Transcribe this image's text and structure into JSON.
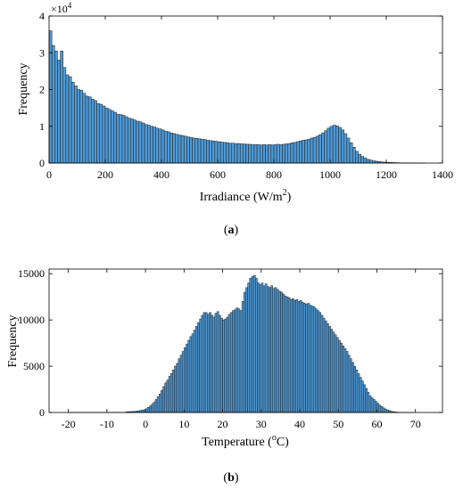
{
  "figures": [
    {
      "caption_open": "(",
      "caption_letter": "a",
      "caption_close": ")",
      "chart_data": {
        "type": "bar",
        "title": "",
        "xlabel": "Irradiance (W/m",
        "xlabel_sup": "2",
        "xlabel_end": ")",
        "ylabel": "Frequency",
        "y_multiplier_base": "×10",
        "y_multiplier_exp": "4",
        "xlim": [
          0,
          1400
        ],
        "ylim": [
          0,
          4
        ],
        "xticks": [
          0,
          200,
          400,
          600,
          800,
          1000,
          1200,
          1400
        ],
        "yticks": [
          0,
          1,
          2,
          3,
          4
        ],
        "bin_start": 0,
        "bin_width": 10,
        "bar_color": "#4f9ad6",
        "edge_color": "#1a1a1a",
        "values": [
          3.6,
          3.2,
          3.05,
          2.8,
          3.05,
          2.6,
          2.4,
          2.35,
          2.2,
          2.1,
          2.0,
          1.98,
          1.9,
          1.82,
          1.8,
          1.74,
          1.7,
          1.62,
          1.6,
          1.55,
          1.5,
          1.46,
          1.42,
          1.38,
          1.33,
          1.32,
          1.3,
          1.26,
          1.22,
          1.2,
          1.17,
          1.14,
          1.12,
          1.09,
          1.05,
          1.03,
          1.0,
          0.98,
          0.95,
          0.93,
          0.9,
          0.87,
          0.85,
          0.82,
          0.8,
          0.78,
          0.76,
          0.75,
          0.73,
          0.71,
          0.7,
          0.68,
          0.67,
          0.66,
          0.65,
          0.64,
          0.62,
          0.61,
          0.6,
          0.59,
          0.58,
          0.57,
          0.56,
          0.55,
          0.54,
          0.54,
          0.53,
          0.53,
          0.52,
          0.52,
          0.51,
          0.51,
          0.5,
          0.5,
          0.5,
          0.49,
          0.5,
          0.49,
          0.5,
          0.49,
          0.5,
          0.51,
          0.5,
          0.51,
          0.52,
          0.53,
          0.55,
          0.56,
          0.58,
          0.6,
          0.62,
          0.63,
          0.65,
          0.68,
          0.7,
          0.73,
          0.77,
          0.82,
          0.88,
          0.95,
          1.0,
          1.03,
          1.01,
          0.97,
          0.9,
          0.8,
          0.68,
          0.55,
          0.43,
          0.32,
          0.24,
          0.18,
          0.14,
          0.1,
          0.08,
          0.06,
          0.05,
          0.04,
          0.03,
          0.025,
          0.02,
          0.016,
          0.013,
          0.01,
          0.008,
          0.006,
          0.005,
          0.004,
          0.003,
          0.002,
          0.002,
          0.001,
          0.001,
          0.001
        ]
      }
    },
    {
      "caption_open": "(",
      "caption_letter": "b",
      "caption_close": ")",
      "chart_data": {
        "type": "bar",
        "title": "",
        "xlabel": "Temperature (",
        "xlabel_sup": "o",
        "xlabel_end": "C)",
        "ylabel": "Frequency",
        "xlim": [
          -25,
          77
        ],
        "ylim": [
          0,
          15500
        ],
        "xticks": [
          -20,
          -10,
          0,
          10,
          20,
          30,
          40,
          50,
          60,
          70
        ],
        "yticks": [
          0,
          5000,
          10000,
          15000
        ],
        "bin_start": -25,
        "bin_width": 0.5,
        "bar_color": "#4f9ad6",
        "edge_color": "#1a1a1a",
        "values": [
          0,
          0,
          0,
          0,
          0,
          0,
          0,
          0,
          0,
          0,
          5,
          5,
          5,
          5,
          5,
          5,
          5,
          5,
          5,
          5,
          5,
          5,
          5,
          5,
          5,
          5,
          5,
          5,
          5,
          5,
          20,
          20,
          20,
          20,
          20,
          20,
          20,
          20,
          20,
          20,
          80,
          90,
          100,
          110,
          120,
          150,
          180,
          220,
          260,
          300,
          400,
          550,
          700,
          900,
          1100,
          1400,
          1700,
          2000,
          2400,
          2800,
          3200,
          3500,
          3900,
          4200,
          4600,
          5000,
          5300,
          5800,
          6200,
          6600,
          7000,
          7400,
          7800,
          8200,
          8500,
          8900,
          9300,
          9700,
          10100,
          10500,
          10800,
          10800,
          10600,
          10800,
          10500,
          10300,
          10700,
          10900,
          10500,
          10200,
          10000,
          10100,
          10300,
          10600,
          10800,
          11000,
          11100,
          11300,
          11200,
          11000,
          12000,
          13000,
          13500,
          14000,
          14500,
          14700,
          14800,
          14500,
          14000,
          13800,
          14000,
          13700,
          13900,
          13600,
          13500,
          13700,
          13400,
          13500,
          13300,
          13100,
          13000,
          12800,
          12600,
          12500,
          12400,
          12200,
          12300,
          12100,
          12200,
          12000,
          12100,
          11900,
          11800,
          11700,
          11800,
          11600,
          11500,
          11400,
          11200,
          11000,
          10800,
          10500,
          10200,
          9900,
          9600,
          9300,
          9000,
          8700,
          8400,
          8100,
          7800,
          7500,
          7200,
          6900,
          6600,
          6200,
          5800,
          5400,
          5000,
          4600,
          4200,
          3800,
          3400,
          3000,
          2600,
          2200,
          1800,
          1600,
          1400,
          1200,
          1000,
          800,
          650,
          500,
          380,
          280,
          200,
          140,
          90,
          60,
          40,
          25,
          15,
          10,
          6,
          4,
          2,
          1,
          1,
          0,
          0,
          0,
          0,
          0,
          0,
          0,
          0,
          0,
          0,
          0,
          0
        ]
      }
    }
  ]
}
